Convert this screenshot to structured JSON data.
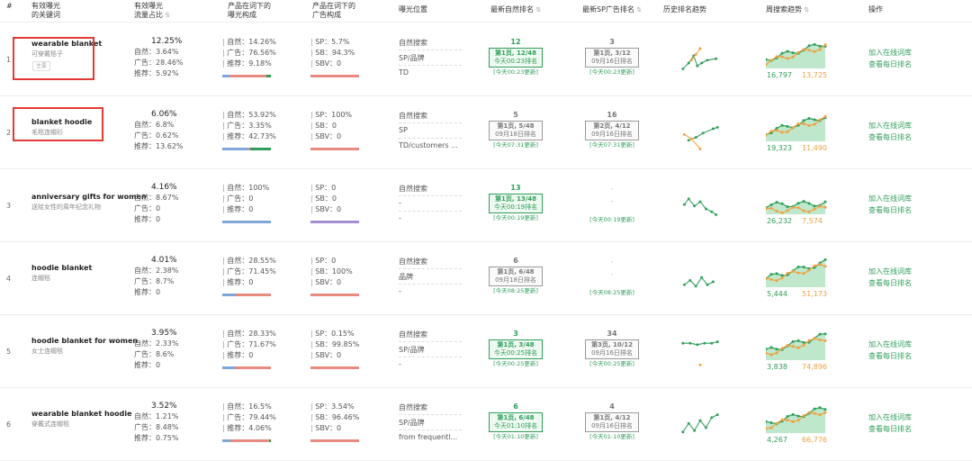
{
  "header": {
    "num": "#",
    "keyword": "有效曝光\n的关键词",
    "traffic": "有效曝光\n流量占比",
    "prod_comp": "产品在词下的\n曝光构成",
    "ad_comp": "产品在词下的\n广告构成",
    "exposure": "曝光位置",
    "natural_rank": "最新自然排名",
    "sp_rank": "最新SP广告排名",
    "history": "历史排名趋势",
    "weekly": "周搜索趋势",
    "action": "操作"
  },
  "labels": {
    "natural": "自然：",
    "ad": "广告：",
    "rec": "推荐：",
    "sp": "SP：",
    "sb": "SB：",
    "sbv": "SBV：",
    "add_lib": "加入在线词库",
    "view_daily": "查看每日排名",
    "main_tag": "主要"
  },
  "colors": {
    "green": "#2e9e58",
    "orange": "#f0a040",
    "blue": "#7ea7d8",
    "purple": "#a48cd0",
    "red": "#e88a80"
  },
  "rows": [
    {
      "idx": "1",
      "kw": "wearable blanket",
      "cn": "可穿戴毯子",
      "tag": true,
      "pct": "12.25%",
      "nat": "3.64%",
      "ad": "28.46%",
      "rec": "5.92%",
      "p_nat": "14.26%",
      "p_ad": "76.56%",
      "p_rec": "9.18%",
      "sp": "5.7%",
      "sb": "94.3%",
      "sbv": "0",
      "exp": [
        "自然搜索",
        "SP/品牌",
        "TD"
      ],
      "nr": {
        "type": "g",
        "n": "12",
        "box": "第1页, 12/48",
        "sub": "今天00:23排名",
        "u": "[今天00:23更新]"
      },
      "sr": {
        "type": "gr",
        "n": "3",
        "box": "第1页, 3/12",
        "sub": "09月16日排名",
        "u": "[今天00:23更新]"
      },
      "w1": "16,797",
      "w2": "13,725",
      "pb": [
        14.26,
        76.56,
        9.18
      ],
      "ab": [
        5.7,
        94.3,
        0
      ]
    },
    {
      "idx": "2",
      "kw": "blanket hoodie",
      "cn": "毛毯连帽衫",
      "tag": false,
      "pct": "6.06%",
      "nat": "6.8%",
      "ad": "0.62%",
      "rec": "13.62%",
      "p_nat": "53.92%",
      "p_ad": "3.35%",
      "p_rec": "42.73%",
      "sp": "100%",
      "sb": "0",
      "sbv": "0",
      "exp": [
        "自然搜索",
        "SP",
        "TD/customers ..."
      ],
      "nr": {
        "type": "gr",
        "n": "5",
        "box": "第1页, 5/48",
        "sub": "09月18日排名",
        "u": "[今天07:31更新]"
      },
      "sr": {
        "type": "gr",
        "n": "16",
        "box": "第2页, 4/12",
        "sub": "09月16日排名",
        "u": "[今天07:31更新]"
      },
      "w1": "19,323",
      "w2": "11,490",
      "pb": [
        53.92,
        3.35,
        42.73
      ],
      "ab": [
        100,
        0,
        0
      ]
    },
    {
      "idx": "3",
      "kw": "anniversary gifts for women",
      "cn": "送给女性的周年纪念礼物",
      "tag": false,
      "pct": "4.16%",
      "nat": "8.67%",
      "ad": "0",
      "rec": "0",
      "p_nat": "100%",
      "p_ad": "0",
      "p_rec": "0",
      "sp": "0",
      "sb": "0",
      "sbv": "0",
      "exp": [
        "自然搜索",
        "-",
        "-"
      ],
      "nr": {
        "type": "g",
        "n": "13",
        "box": "第1页, 13/48",
        "sub": "今天00:19排名",
        "u": "[今天00:19更新]"
      },
      "sr": {
        "type": "none",
        "n": "-",
        "box": "-",
        "sub": "",
        "u": "[今天00:19更新]"
      },
      "w1": "26,232",
      "w2": "7,574",
      "pb": [
        100,
        0,
        0
      ],
      "ab": [
        0,
        0,
        0
      ]
    },
    {
      "idx": "4",
      "kw": "hoodie blanket",
      "cn": "连帽毯",
      "tag": false,
      "pct": "4.01%",
      "nat": "2.38%",
      "ad": "8.7%",
      "rec": "0",
      "p_nat": "28.55%",
      "p_ad": "71.45%",
      "p_rec": "0",
      "sp": "0",
      "sb": "100%",
      "sbv": "0",
      "exp": [
        "自然搜索",
        "品牌",
        "-"
      ],
      "nr": {
        "type": "gr",
        "n": "6",
        "box": "第1页, 6/48",
        "sub": "09月18日排名",
        "u": "[今天08:25更新]"
      },
      "sr": {
        "type": "none",
        "n": "-",
        "box": "-",
        "sub": "",
        "u": "[今天08:25更新]"
      },
      "w1": "5,444",
      "w2": "51,173",
      "pb": [
        28.55,
        71.45,
        0
      ],
      "ab": [
        0,
        100,
        0
      ]
    },
    {
      "idx": "5",
      "kw": "hoodie blanket for women",
      "cn": "女士连帽毯",
      "tag": false,
      "pct": "3.95%",
      "nat": "2.33%",
      "ad": "8.6%",
      "rec": "0",
      "p_nat": "28.33%",
      "p_ad": "71.67%",
      "p_rec": "0",
      "sp": "0.15%",
      "sb": "99.85%",
      "sbv": "0",
      "exp": [
        "自然搜索",
        "SP/品牌",
        "-"
      ],
      "nr": {
        "type": "g",
        "n": "3",
        "box": "第1页, 3/48",
        "sub": "今天00:25排名",
        "u": "[今天00:25更新]"
      },
      "sr": {
        "type": "gr",
        "n": "34",
        "box": "第3页, 10/12",
        "sub": "09月16日排名",
        "u": "[今天00:25更新]"
      },
      "w1": "3,838",
      "w2": "74,896",
      "pb": [
        28.33,
        71.67,
        0
      ],
      "ab": [
        0.15,
        99.85,
        0
      ]
    },
    {
      "idx": "6",
      "kw": "wearable blanket hoodie",
      "cn": "穿戴式连帽毯",
      "tag": false,
      "pct": "3.52%",
      "nat": "1.21%",
      "ad": "8.48%",
      "rec": "0.75%",
      "p_nat": "16.5%",
      "p_ad": "79.44%",
      "p_rec": "4.06%",
      "sp": "3.54%",
      "sb": "96.46%",
      "sbv": "0",
      "exp": [
        "自然搜索",
        "SP/品牌",
        "from frequentl..."
      ],
      "nr": {
        "type": "g",
        "n": "6",
        "box": "第1页, 6/48",
        "sub": "今天01:10排名",
        "u": "[今天01:10更新]"
      },
      "sr": {
        "type": "gr",
        "n": "4",
        "box": "第1页, 4/12",
        "sub": "09月16日排名",
        "u": "[今天01:10更新]"
      },
      "w1": "4,267",
      "w2": "66,776",
      "pb": [
        16.5,
        79.44,
        4.06
      ],
      "ab": [
        3.54,
        96.46,
        0
      ]
    }
  ]
}
